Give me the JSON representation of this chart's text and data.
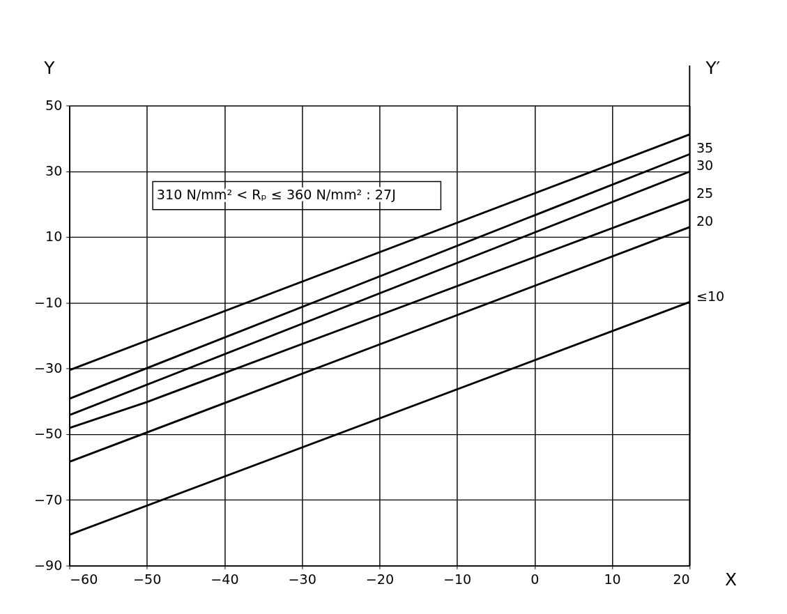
{
  "chart_data": {
    "type": "line",
    "xlabel": "X",
    "ylabel": "Y",
    "y2label": "Y′",
    "xlim": [
      -60,
      20
    ],
    "ylim": [
      -90,
      50
    ],
    "xticks": [
      -60,
      -50,
      -40,
      -30,
      -20,
      -10,
      0,
      10,
      20
    ],
    "yticks": [
      -90,
      -70,
      -50,
      -30,
      -10,
      10,
      30,
      50
    ],
    "grid": true,
    "legend": false,
    "marker": "none",
    "line_style": "solid",
    "annotations": [
      "310 N/mm² < Rₚ ≤ 360 N/mm² : 27J"
    ],
    "series": [
      {
        "color": "#000000",
        "x": [
          -60,
          20
        ],
        "values": [
          -30.5,
          41.2
        ]
      },
      {
        "name": "35",
        "color": "#000000",
        "x": [
          -60,
          20
        ],
        "values": [
          -39.2,
          35.2
        ]
      },
      {
        "name": "30",
        "color": "#000000",
        "x": [
          -60,
          20
        ],
        "values": [
          -44.2,
          29.9
        ]
      },
      {
        "name": "25",
        "color": "#000000",
        "x": [
          -60,
          -50,
          20
        ],
        "values": [
          -48.1,
          -40.2,
          21.5
        ]
      },
      {
        "name": "20",
        "color": "#000000",
        "x": [
          -60,
          20
        ],
        "values": [
          -58.4,
          13.0
        ]
      },
      {
        "name": "≤10",
        "color": "#000000",
        "x": [
          -60,
          20
        ],
        "values": [
          -80.6,
          -9.8
        ]
      }
    ]
  }
}
